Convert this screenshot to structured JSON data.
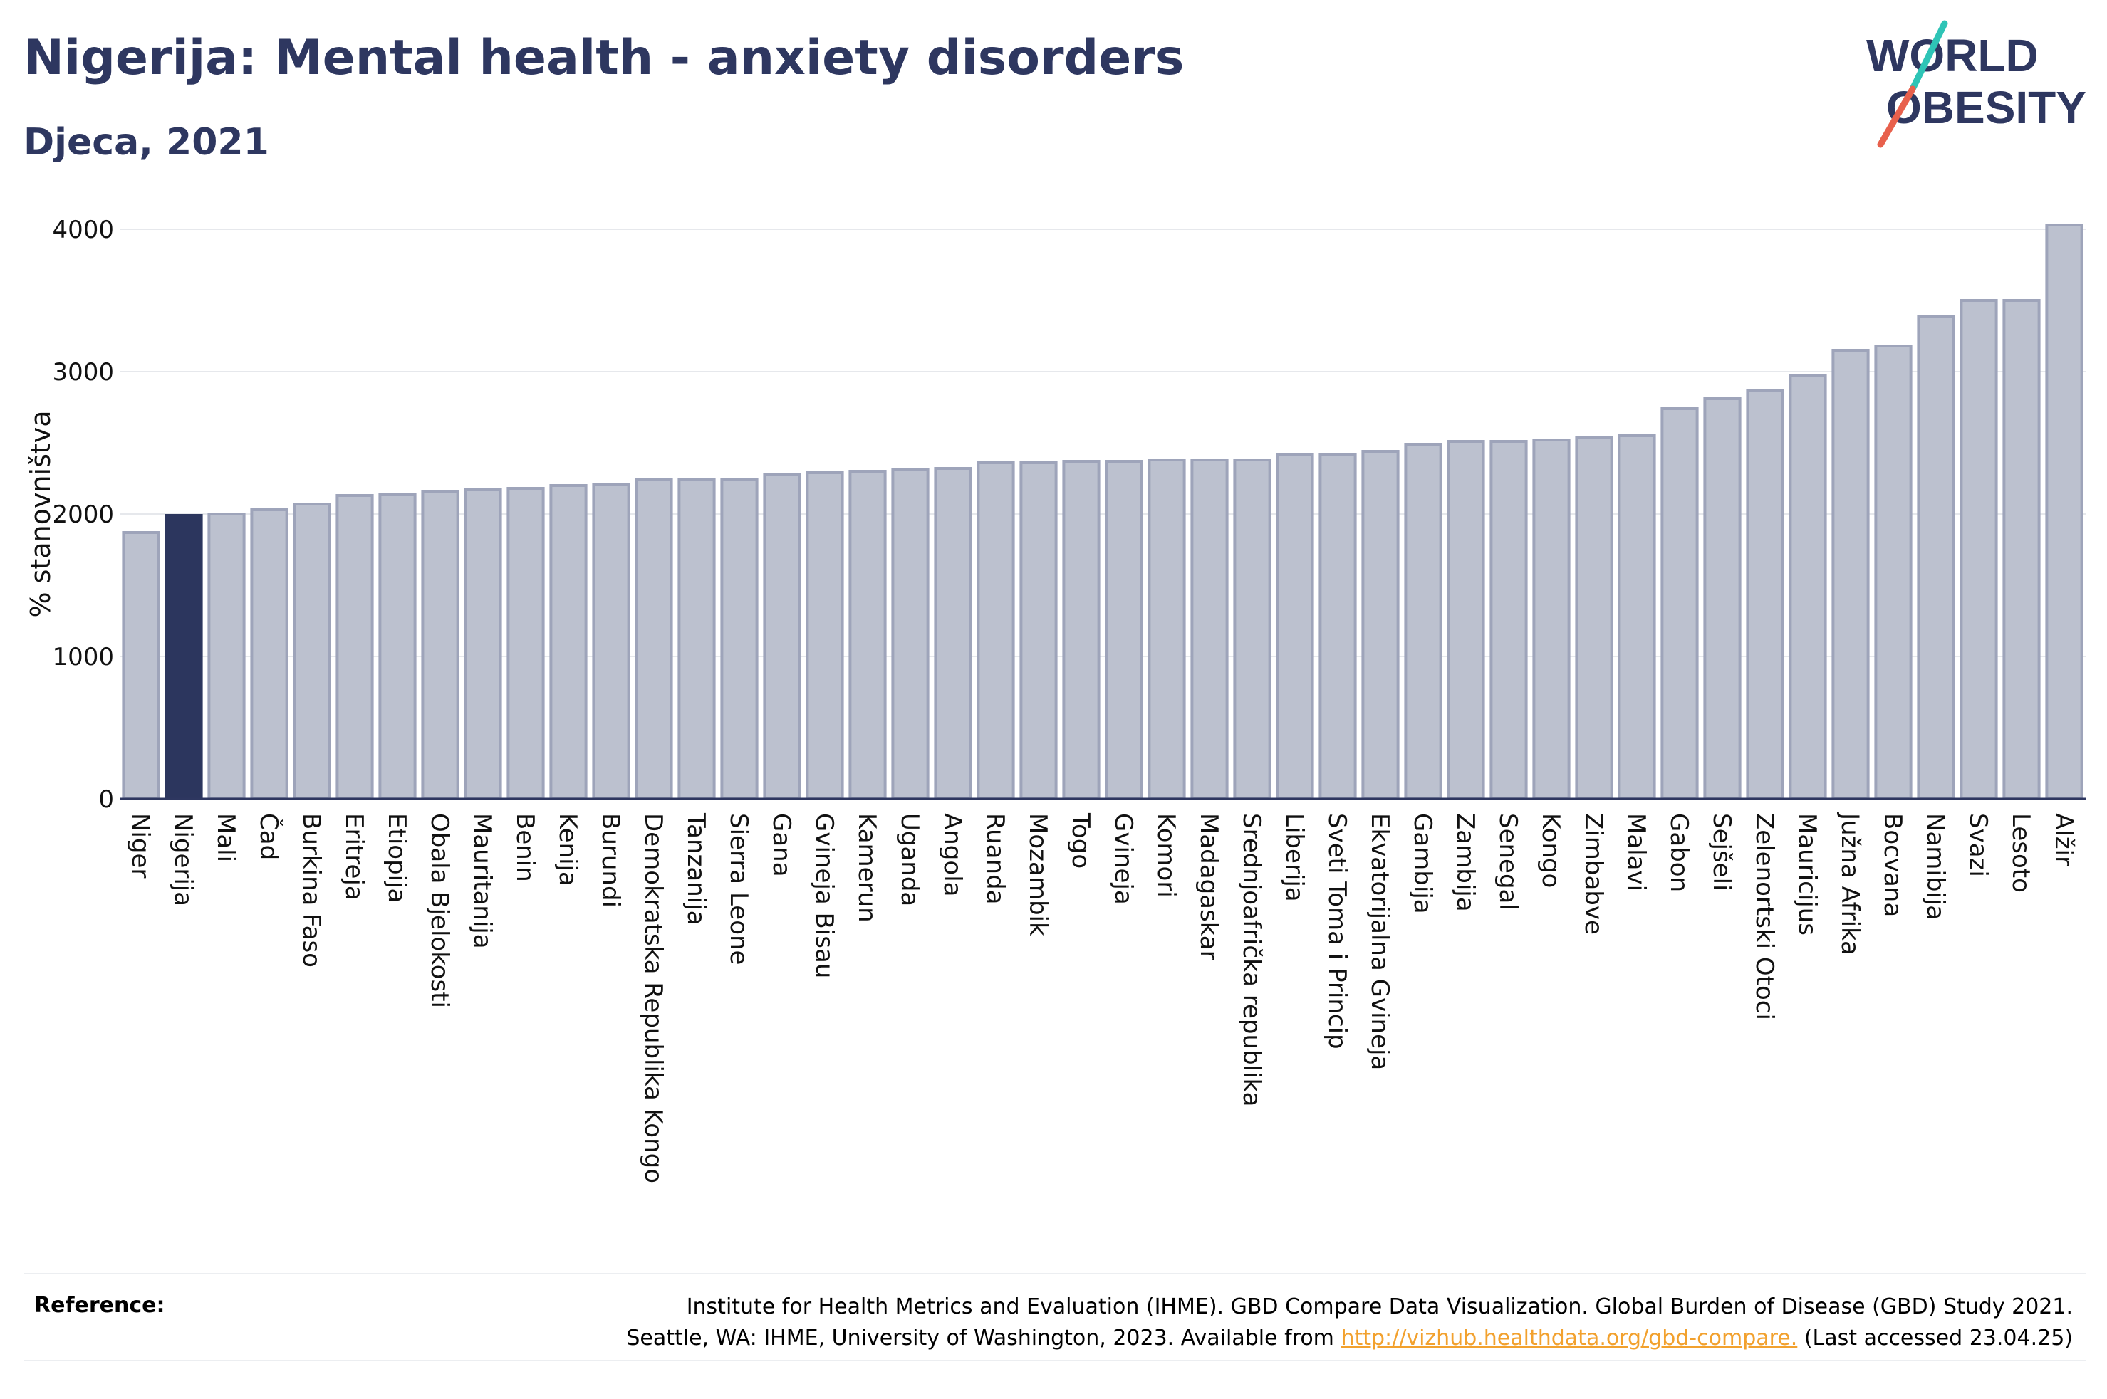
{
  "title": "Nigerija: Mental health - anxiety disorders",
  "subtitle": "Djeca, 2021",
  "logo": {
    "line1": "WORLD",
    "line2": "OBESITY"
  },
  "reference": {
    "label": "Reference:",
    "line1": "Institute for Health Metrics and Evaluation (IHME). GBD Compare Data Visualization. Global Burden of Disease (GBD) Study 2021.",
    "line2_prefix": "Seattle, WA: IHME, University of Washington, 2023. Available from ",
    "link": "http://vizhub.healthdata.org/gbd-compare.",
    "line2_suffix": " (Last accessed 23.04.25)"
  },
  "colors": {
    "title": "#2e3760",
    "bar": "#bcc1cf",
    "bar_stroke": "#9ea4ba",
    "highlight": "#2c365e",
    "link": "#f2a12e",
    "logo_slash_teal": "#2ec4b6",
    "logo_slash_coral": "#e8604c"
  },
  "chart_data": {
    "type": "bar",
    "ylabel": "% stanovništva",
    "ylim": [
      0,
      4000
    ],
    "yticks": [
      0,
      1000,
      2000,
      3000,
      4000
    ],
    "highlight": "Nigerija",
    "categories": [
      "Niger",
      "Nigerija",
      "Mali",
      "Čad",
      "Burkina Faso",
      "Eritreja",
      "Etiopija",
      "Obala Bjelokosti",
      "Mauritanija",
      "Benin",
      "Kenija",
      "Burundi",
      "Demokratska Republika Kongo",
      "Tanzanija",
      "Sierra Leone",
      "Gana",
      "Gvineja Bisau",
      "Kamerun",
      "Uganda",
      "Angola",
      "Ruanda",
      "Mozambik",
      "Togo",
      "Gvineja",
      "Komori",
      "Madagaskar",
      "Srednjoafrička republika",
      "Liberija",
      "Sveti Toma i Princip",
      "Ekvatorijalna Gvineja",
      "Gambija",
      "Zambija",
      "Senegal",
      "Kongo",
      "Zimbabve",
      "Malavi",
      "Gabon",
      "Sejšeli",
      "Zelenortski Otoci",
      "Mauricijus",
      "Južna Afrika",
      "Bocvana",
      "Namibija",
      "Svazi",
      "Lesoto",
      "Alžir"
    ],
    "values": [
      1870,
      1990,
      2000,
      2030,
      2070,
      2130,
      2140,
      2160,
      2170,
      2180,
      2200,
      2210,
      2240,
      2240,
      2240,
      2280,
      2290,
      2300,
      2310,
      2320,
      2360,
      2360,
      2370,
      2370,
      2380,
      2380,
      2380,
      2420,
      2420,
      2440,
      2490,
      2510,
      2510,
      2520,
      2540,
      2550,
      2740,
      2810,
      2870,
      2970,
      3150,
      3180,
      3390,
      3500,
      3500,
      4030
    ]
  }
}
